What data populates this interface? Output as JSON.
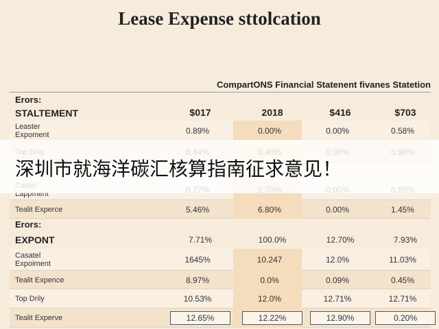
{
  "title": "Lease Expense sttolcation",
  "subtitle": "CompartONS Financial Statenent fivanes Statetion",
  "banner": "深圳市就海洋碳汇核算指南征求意见！",
  "table": {
    "sections": [
      {
        "caption": "Erors:",
        "heading": "STALTEMENT",
        "heading_cells": [
          "$017",
          "2018",
          "$416",
          "$703"
        ],
        "rows": [
          {
            "label": "Leaster\nExpoment",
            "cells": [
              "0.89%",
              "0.00%",
              "0.00%",
              "0.58%"
            ]
          },
          {
            "label": "Top Drily",
            "cells": [
              "6.44%",
              "0.40%",
              "0.90%",
              "0.98%"
            ]
          },
          {
            "label": "Castel\nLappment",
            "cells": [
              "0.27%",
              "2.70%",
              "0.00%",
              "0.89%"
            ]
          },
          {
            "label": "Tealit Experce",
            "cells": [
              "5.46%",
              "6.80%",
              "0.00%",
              "1.45%"
            ]
          }
        ]
      },
      {
        "caption": "Erors:",
        "heading": "EXPONT",
        "heading_cells": [
          "7.71%",
          "100.0%",
          "12.70%",
          "7.93%"
        ],
        "rows": [
          {
            "label": "Casatel\nExpoiment",
            "cells": [
              "1645%",
              "10.247",
              "12.0%",
              "11.03%"
            ]
          },
          {
            "label": "Tealit Expence",
            "cells": [
              "8.97%",
              "0.0%",
              "0.09%",
              "0.45%"
            ]
          },
          {
            "label": "Top Drily",
            "cells": [
              "10.53%",
              "12.0%",
              "12.71%",
              "12.71%"
            ]
          },
          {
            "label": "Tealit Experve",
            "cells": [
              "12.65%",
              "12.22%",
              "12.90%",
              "0.20%"
            ]
          }
        ]
      }
    ]
  }
}
